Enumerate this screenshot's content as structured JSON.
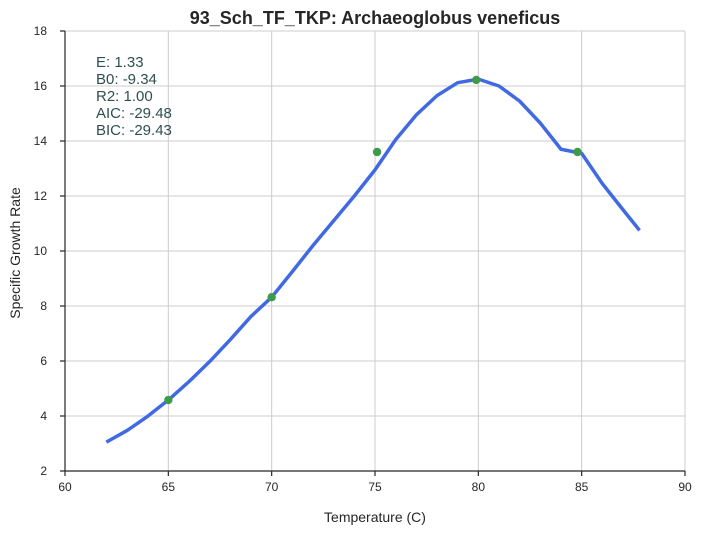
{
  "chart_data": {
    "type": "line",
    "title": "93_Sch_TF_TKP: Archaeoglobus veneficus",
    "xlabel": "Temperature (C)",
    "ylabel": "Specific Growth Rate",
    "xlim": [
      60,
      90
    ],
    "ylim": [
      2,
      18
    ],
    "xticks": [
      60,
      65,
      70,
      75,
      80,
      85,
      90
    ],
    "yticks": [
      2,
      4,
      6,
      8,
      10,
      12,
      14,
      16,
      18
    ],
    "grid": true,
    "stats": [
      {
        "label": "E:",
        "value": "1.33"
      },
      {
        "label": "B0:",
        "value": "-9.34"
      },
      {
        "label": "R2:",
        "value": "1.00"
      },
      {
        "label": "AIC:",
        "value": "-29.48"
      },
      {
        "label": "BIC:",
        "value": "-29.43"
      }
    ],
    "series": [
      {
        "kind": "line",
        "color": "#4169e1",
        "x": [
          62,
          63,
          64,
          65,
          66,
          67,
          68,
          69,
          70,
          71,
          72,
          73,
          74,
          75,
          76,
          77,
          78,
          79,
          80,
          81,
          82,
          83,
          84,
          85,
          86,
          87,
          87.8
        ],
        "y": [
          3.05,
          3.47,
          3.99,
          4.58,
          5.25,
          5.98,
          6.78,
          7.62,
          8.32,
          9.25,
          10.2,
          11.1,
          12.0,
          12.95,
          14.05,
          14.95,
          15.65,
          16.12,
          16.25,
          16.0,
          15.45,
          14.65,
          13.7,
          13.55,
          12.45,
          11.5,
          10.75
        ]
      },
      {
        "kind": "scatter",
        "color": "#3d9b4a",
        "x": [
          65,
          70,
          75.1,
          79.9,
          84.8
        ],
        "y": [
          4.58,
          8.32,
          13.6,
          16.22,
          13.6
        ]
      }
    ]
  }
}
